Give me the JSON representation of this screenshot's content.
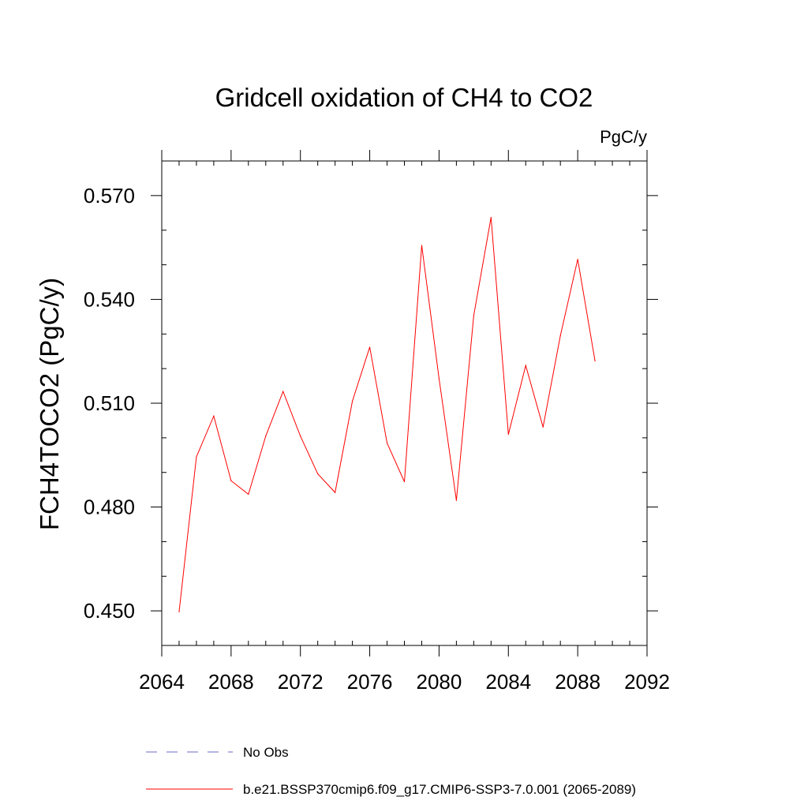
{
  "chart_data": {
    "type": "line",
    "title": "Gridcell oxidation of CH4 to CO2",
    "units_label": "PgC/y",
    "ylabel": "FCH4TOCO2  (PgC/y)",
    "xlabel": "",
    "xlim": [
      2064,
      2092
    ],
    "ylim": [
      0.44,
      0.58
    ],
    "xticks": [
      2064,
      2068,
      2072,
      2076,
      2080,
      2084,
      2088,
      2092
    ],
    "xtick_labels": [
      "2064",
      "2068",
      "2072",
      "2076",
      "2080",
      "2084",
      "2088",
      "2092"
    ],
    "yticks": [
      0.45,
      0.48,
      0.51,
      0.54,
      0.57
    ],
    "ytick_labels": [
      "0.450",
      "0.480",
      "0.510",
      "0.540",
      "0.570"
    ],
    "grid": false,
    "legend_position": "bottom",
    "series": [
      {
        "name": "No Obs",
        "color": "#6a6ac8",
        "dash": "dashed",
        "x": [],
        "y": []
      },
      {
        "name": "b.e21.BSSP370cmip6.f09_g17.CMIP6-SSP3-7.0.001 (2065-2089)",
        "color": "#ff0000",
        "dash": "solid",
        "x": [
          2065,
          2066,
          2067,
          2068,
          2069,
          2070,
          2071,
          2072,
          2073,
          2074,
          2075,
          2076,
          2077,
          2078,
          2079,
          2080,
          2081,
          2082,
          2083,
          2084,
          2085,
          2086,
          2087,
          2088,
          2089
        ],
        "y": [
          0.4497,
          0.4945,
          0.5063,
          0.4876,
          0.4837,
          0.5005,
          0.5134,
          0.5005,
          0.4896,
          0.4842,
          0.5106,
          0.5262,
          0.4985,
          0.4873,
          0.5556,
          0.5171,
          0.4819,
          0.5353,
          0.5637,
          0.501,
          0.5209,
          0.5031,
          0.5295,
          0.5516,
          0.5222
        ]
      }
    ]
  }
}
